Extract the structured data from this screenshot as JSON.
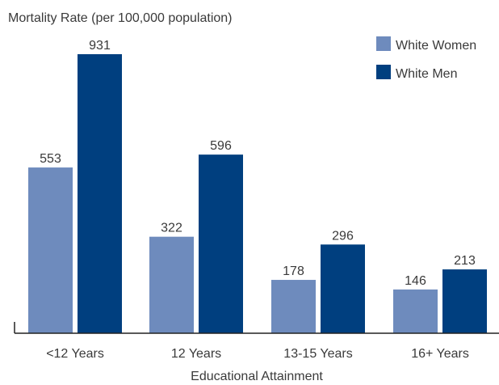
{
  "chart_data": {
    "type": "bar",
    "title": "",
    "ylabel": "Mortality Rate (per 100,000 population)",
    "xlabel": "Educational Attainment",
    "categories": [
      "<12 Years",
      "12 Years",
      "13-15 Years",
      "16+ Years"
    ],
    "series": [
      {
        "name": "White Women",
        "color": "#6e8bbd",
        "values": [
          553,
          322,
          178,
          146
        ]
      },
      {
        "name": "White Men",
        "color": "#003f7f",
        "values": [
          931,
          596,
          296,
          213
        ]
      }
    ],
    "ylim": [
      0,
      1000
    ],
    "grid": false,
    "legend": "top-right"
  }
}
